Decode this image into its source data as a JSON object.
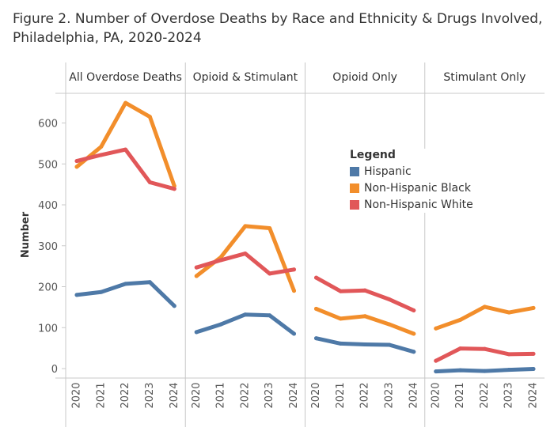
{
  "title": "Figure 2. Number of Overdose Deaths by Race and Ethnicity & Drugs Involved, Philadelphia, PA, 2020-2024",
  "legend": {
    "title": "Legend",
    "items": [
      {
        "label": "Hispanic",
        "color": "#4e79a7"
      },
      {
        "label": "Non-Hispanic Black",
        "color": "#f28e2b"
      },
      {
        "label": "Non-Hispanic White",
        "color": "#e15759"
      }
    ]
  },
  "chart_data": {
    "type": "line",
    "ylabel": "Number",
    "ylim": [
      0,
      700
    ],
    "yticks": [
      0,
      100,
      200,
      300,
      400,
      500,
      600
    ],
    "x": [
      "2020",
      "2021",
      "2022",
      "2023",
      "2024"
    ],
    "grid": false,
    "legend_position": "right",
    "panels": [
      {
        "title": "All Overdose Deaths",
        "series": [
          {
            "name": "Hispanic",
            "color": "#4e79a7",
            "values": [
              180,
              187,
              207,
              211,
              153
            ]
          },
          {
            "name": "Non-Hispanic Black",
            "color": "#f28e2b",
            "values": [
              493,
              542,
              649,
              615,
              446
            ]
          },
          {
            "name": "Non-Hispanic White",
            "color": "#e15759",
            "values": [
              507,
              522,
              535,
              455,
              439
            ]
          }
        ]
      },
      {
        "title": "Opioid & Stimulant",
        "series": [
          {
            "name": "Hispanic",
            "color": "#4e79a7",
            "values": [
              89,
              108,
              132,
              130,
              85
            ]
          },
          {
            "name": "Non-Hispanic Black",
            "color": "#f28e2b",
            "values": [
              226,
              272,
              348,
              343,
              190
            ]
          },
          {
            "name": "Non-Hispanic White",
            "color": "#e15759",
            "values": [
              247,
              265,
              281,
              232,
              242
            ]
          }
        ]
      },
      {
        "title": "Opioid Only",
        "series": [
          {
            "name": "Hispanic",
            "color": "#4e79a7",
            "values": [
              74,
              61,
              59,
              58,
              41
            ]
          },
          {
            "name": "Non-Hispanic Black",
            "color": "#f28e2b",
            "values": [
              146,
              122,
              128,
              108,
              85
            ]
          },
          {
            "name": "Non-Hispanic White",
            "color": "#e15759",
            "values": [
              222,
              189,
              191,
              169,
              142
            ]
          }
        ]
      },
      {
        "title": "Stimulant Only",
        "series": [
          {
            "name": "Hispanic",
            "color": "#4e79a7",
            "values": [
              -7,
              -4,
              -6,
              -3,
              -1
            ]
          },
          {
            "name": "Non-Hispanic Black",
            "color": "#f28e2b",
            "values": [
              98,
              119,
              151,
              137,
              148
            ]
          },
          {
            "name": "Non-Hispanic White",
            "color": "#e15759",
            "values": [
              19,
              49,
              48,
              35,
              36
            ]
          }
        ]
      }
    ]
  }
}
